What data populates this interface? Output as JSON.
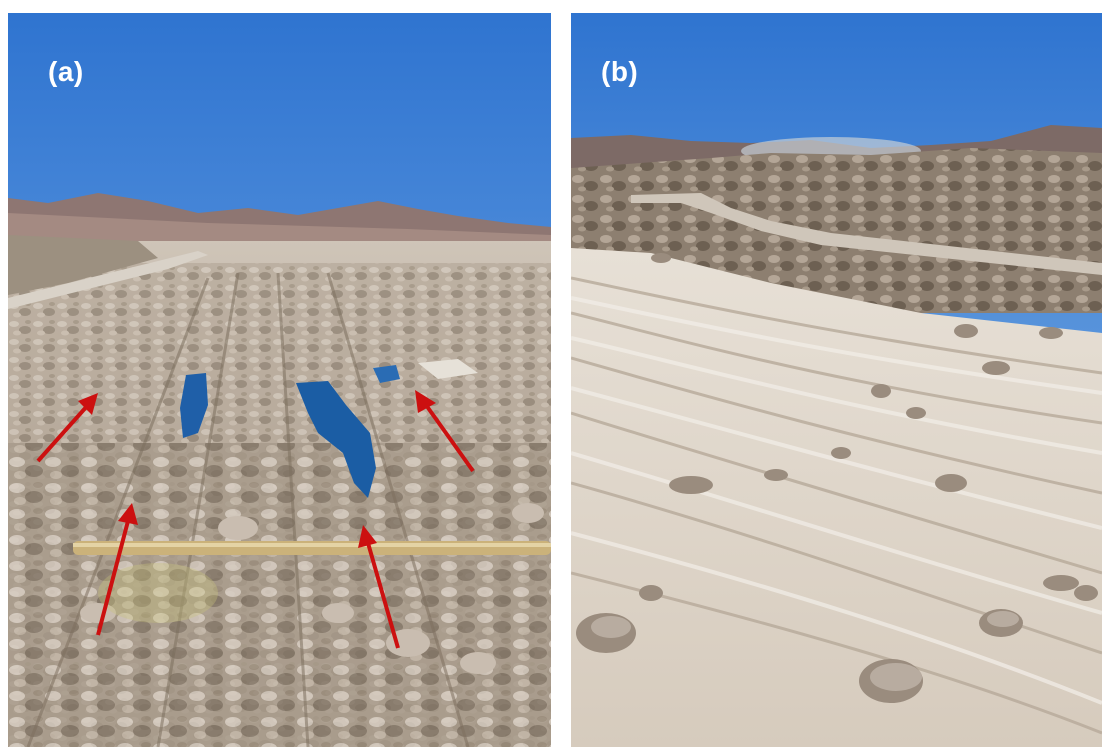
{
  "figure": {
    "panels": [
      {
        "id": "a",
        "label": "(a)",
        "scene": "heap-leach-pad-with-pooled-solution",
        "annotation_arrow_color": "#cc1010",
        "arrow_count": 4
      },
      {
        "id": "b",
        "label": "(b)",
        "scene": "geotextile-covered-heap-rows"
      }
    ],
    "colors": {
      "sky": "#4f8fdc",
      "label": "#ffffff",
      "arrow": "#cc1010",
      "pond": "#1f5fa8"
    }
  }
}
